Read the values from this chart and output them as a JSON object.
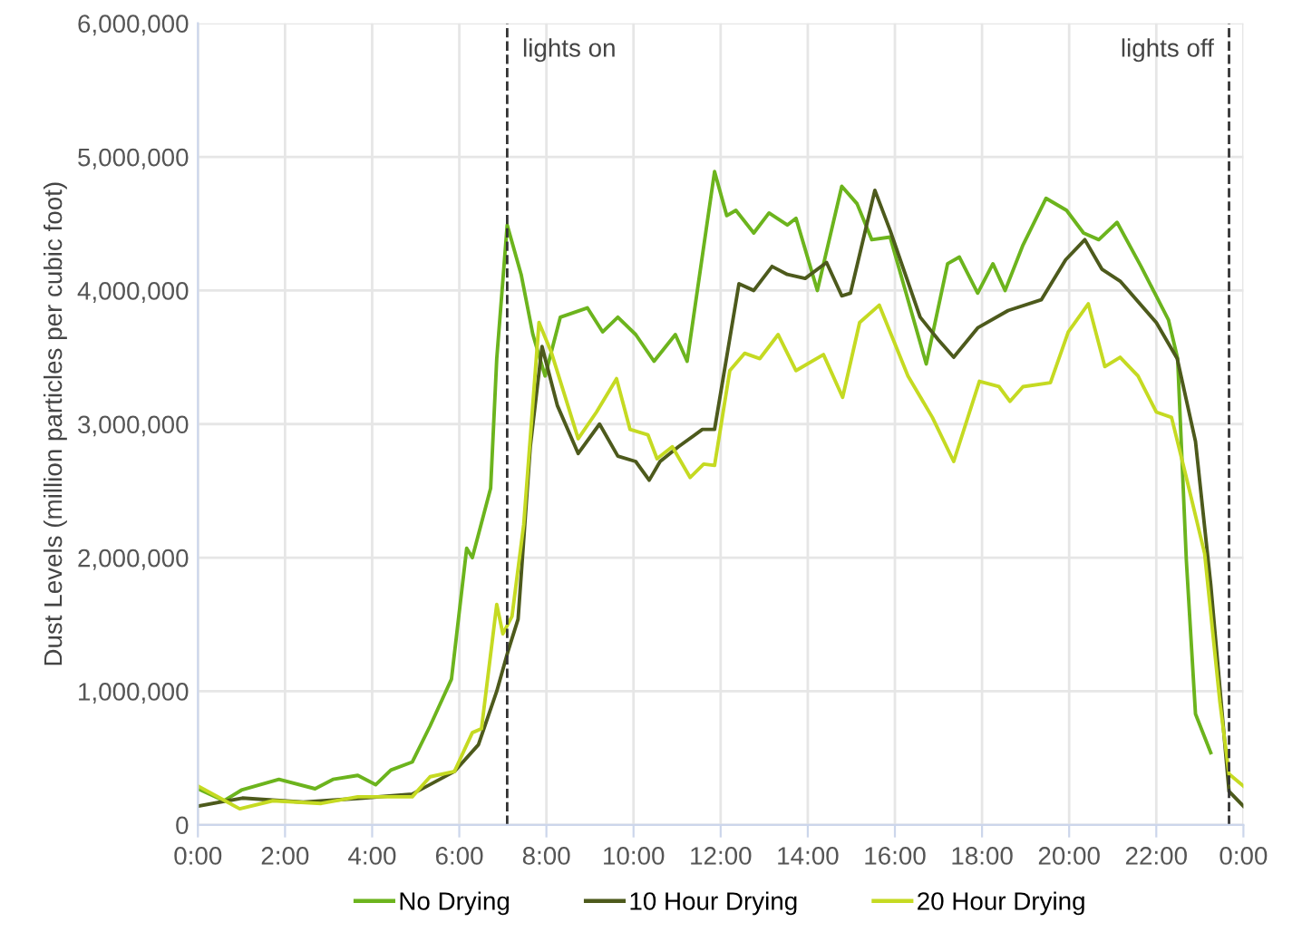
{
  "chart_data": {
    "type": "line",
    "ylabel": "Dust Levels (million particles per cubic foot)",
    "xlim": [
      0,
      24
    ],
    "ylim": [
      0,
      6000000
    ],
    "xticks": [
      {
        "value": 0,
        "label": "0:00"
      },
      {
        "value": 2,
        "label": "2:00"
      },
      {
        "value": 4,
        "label": "4:00"
      },
      {
        "value": 6,
        "label": "6:00"
      },
      {
        "value": 8,
        "label": "8:00"
      },
      {
        "value": 10,
        "label": "10:00"
      },
      {
        "value": 12,
        "label": "12:00"
      },
      {
        "value": 14,
        "label": "14:00"
      },
      {
        "value": 16,
        "label": "16:00"
      },
      {
        "value": 18,
        "label": "18:00"
      },
      {
        "value": 20,
        "label": "20:00"
      },
      {
        "value": 22,
        "label": "22:00"
      },
      {
        "value": 24,
        "label": "0:00"
      }
    ],
    "yticks": [
      0,
      {
        "value": 1000000,
        "label": "1,000,000"
      },
      {
        "value": 2000000,
        "label": "2,000,000"
      },
      {
        "value": 3000000,
        "label": "3,000,000"
      },
      {
        "value": 4000000,
        "label": "4,000,000"
      },
      {
        "value": 5000000,
        "label": "5,000,000"
      },
      {
        "value": 6000000,
        "label": "6,000,000"
      }
    ],
    "grid": true,
    "legend": "bottom",
    "marker": "none",
    "line_style": "solid",
    "ref_lines": [
      {
        "axis": "x",
        "value": 7.1,
        "label": "lights on",
        "color": "#333333",
        "line_style": "dashed"
      },
      {
        "axis": "x",
        "value": 23.67,
        "label": "lights off",
        "color": "#333333",
        "line_style": "dashed"
      }
    ],
    "series": [
      {
        "name": "No Drying",
        "color": "#6cb41d",
        "x": [
          0,
          0.6,
          1.0,
          1.86,
          2.69,
          3.1,
          3.67,
          4.08,
          4.43,
          4.92,
          5.33,
          5.82,
          6.17,
          6.3,
          6.72,
          6.86,
          7.1,
          7.42,
          7.69,
          7.97,
          8.32,
          8.94,
          9.29,
          9.64,
          10.05,
          10.47,
          10.96,
          11.23,
          11.86,
          12.14,
          12.35,
          12.76,
          13.11,
          13.53,
          13.73,
          14.22,
          14.78,
          15.13,
          15.47,
          15.89,
          16.72,
          17.21,
          17.48,
          17.9,
          18.25,
          18.53,
          18.94,
          19.47,
          19.94,
          20.33,
          20.68,
          21.1,
          21.65,
          22.28,
          22.49,
          22.69,
          22.9,
          23.25
        ],
        "values": [
          270000,
          180000,
          260000,
          340000,
          270000,
          340000,
          370000,
          300000,
          410000,
          470000,
          740000,
          1090000,
          2070000,
          2000000,
          2520000,
          3490000,
          4490000,
          4120000,
          3670000,
          3360000,
          3800000,
          3870000,
          3690000,
          3800000,
          3670000,
          3470000,
          3670000,
          3470000,
          4890000,
          4560000,
          4600000,
          4430000,
          4580000,
          4490000,
          4540000,
          4000000,
          4780000,
          4650000,
          4380000,
          4400000,
          3450000,
          4200000,
          4250000,
          3980000,
          4200000,
          4000000,
          4340000,
          4690000,
          4600000,
          4430000,
          4380000,
          4510000,
          4180000,
          3780000,
          3490000,
          1980000,
          830000,
          540000
        ]
      },
      {
        "name": "10 Hour Drying",
        "color": "#4d5a1c",
        "x": [
          0,
          1.02,
          2.42,
          3.8,
          4.92,
          5.89,
          6.44,
          6.86,
          7.11,
          7.35,
          7.63,
          7.9,
          8.25,
          8.73,
          9.22,
          9.64,
          10.05,
          10.36,
          10.61,
          11.03,
          11.58,
          11.86,
          12.42,
          12.76,
          13.18,
          13.53,
          13.94,
          14.43,
          14.78,
          14.98,
          15.54,
          15.89,
          16.58,
          17.0,
          17.35,
          17.9,
          18.6,
          19.36,
          19.92,
          20.36,
          20.75,
          21.17,
          22.0,
          22.48,
          22.9,
          23.25,
          23.67,
          24.0
        ],
        "values": [
          140000,
          200000,
          170000,
          200000,
          230000,
          400000,
          600000,
          1000000,
          1290000,
          1540000,
          2830000,
          3580000,
          3140000,
          2780000,
          3000000,
          2760000,
          2720000,
          2580000,
          2720000,
          2830000,
          2960000,
          2960000,
          4050000,
          4000000,
          4180000,
          4120000,
          4090000,
          4210000,
          3960000,
          3980000,
          4750000,
          4450000,
          3800000,
          3630000,
          3500000,
          3720000,
          3850000,
          3930000,
          4230000,
          4380000,
          4160000,
          4070000,
          3760000,
          3490000,
          2870000,
          1800000,
          250000,
          140000
        ]
      },
      {
        "name": "20 Hour Drying",
        "color": "#c5da22",
        "x": [
          0,
          0.96,
          1.72,
          2.83,
          3.67,
          4.92,
          5.33,
          5.89,
          6.3,
          6.51,
          6.86,
          7.0,
          7.21,
          7.48,
          7.83,
          8.11,
          8.73,
          9.15,
          9.61,
          9.92,
          10.33,
          10.54,
          10.89,
          11.3,
          11.61,
          11.86,
          12.21,
          12.55,
          12.9,
          13.32,
          13.73,
          14.36,
          14.8,
          15.19,
          15.64,
          16.3,
          16.86,
          17.35,
          17.94,
          18.39,
          18.64,
          18.94,
          19.57,
          19.98,
          20.44,
          20.82,
          21.17,
          21.58,
          22.0,
          22.35,
          22.69,
          23.11,
          23.46,
          23.67,
          24.0
        ],
        "values": [
          290000,
          120000,
          180000,
          160000,
          210000,
          210000,
          360000,
          400000,
          690000,
          720000,
          1650000,
          1430000,
          1560000,
          2250000,
          3760000,
          3540000,
          2890000,
          3090000,
          3340000,
          2960000,
          2920000,
          2740000,
          2830000,
          2600000,
          2700000,
          2690000,
          3400000,
          3530000,
          3490000,
          3670000,
          3400000,
          3520000,
          3200000,
          3760000,
          3890000,
          3360000,
          3050000,
          2720000,
          3320000,
          3280000,
          3170000,
          3280000,
          3310000,
          3690000,
          3900000,
          3430000,
          3500000,
          3360000,
          3090000,
          3050000,
          2600000,
          2030000,
          920000,
          380000,
          290000
        ]
      }
    ]
  }
}
